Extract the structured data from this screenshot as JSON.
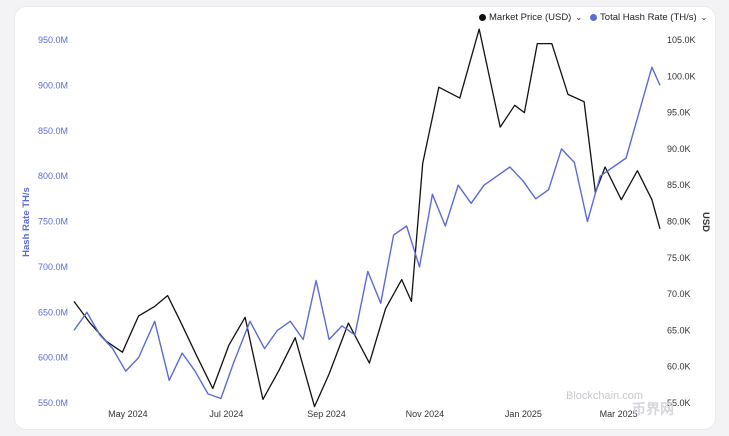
{
  "legend": {
    "items": [
      {
        "label": "Market Price (USD)",
        "color": "#111111",
        "icon": "chevron-down-icon"
      },
      {
        "label": "Total Hash Rate (TH/s)",
        "color": "#5b6bd6",
        "icon": "chevron-down-icon"
      }
    ]
  },
  "watermark": "Blockchain.com",
  "watermark2": "币界网",
  "chart_data": {
    "type": "line",
    "title": "",
    "xlabel": "",
    "ylabel_left": "Hash Rate TH/s",
    "ylabel_right": "USD",
    "x_ticks": [
      "May 2024",
      "Jul 2024",
      "Sep 2024",
      "Nov 2024",
      "Jan 2025",
      "Mar 2025"
    ],
    "x_range": [
      "2024-04-10",
      "2025-04-08"
    ],
    "y_left": {
      "ticks": [
        "950.0M",
        "900.0M",
        "850.0M",
        "800.0M",
        "750.0M",
        "700.0M",
        "650.0M",
        "600.0M",
        "550.0M"
      ],
      "min": 550,
      "max": 950,
      "unit": "M"
    },
    "y_right": {
      "ticks": [
        "105.0K",
        "100.0K",
        "95.0K",
        "90.0K",
        "85.0K",
        "80.0K",
        "75.0K",
        "70.0K",
        "65.0K",
        "60.0K",
        "55.0K"
      ],
      "min": 55000,
      "max": 105000
    },
    "grid": false,
    "legend_position": "top-right",
    "series": [
      {
        "name": "Market Price (USD)",
        "axis": "right",
        "color": "#111111",
        "points": [
          [
            "2024-04-10",
            69000
          ],
          [
            "2024-04-20",
            66000
          ],
          [
            "2024-04-30",
            63500
          ],
          [
            "2024-05-10",
            62000
          ],
          [
            "2024-05-20",
            67000
          ],
          [
            "2024-05-30",
            68300
          ],
          [
            "2024-06-07",
            69800
          ],
          [
            "2024-06-15",
            66200
          ],
          [
            "2024-06-25",
            61500
          ],
          [
            "2024-07-05",
            57000
          ],
          [
            "2024-07-15",
            63000
          ],
          [
            "2024-07-25",
            66800
          ],
          [
            "2024-08-05",
            55500
          ],
          [
            "2024-08-15",
            59500
          ],
          [
            "2024-08-25",
            64000
          ],
          [
            "2024-09-06",
            54500
          ],
          [
            "2024-09-15",
            59000
          ],
          [
            "2024-09-27",
            66000
          ],
          [
            "2024-10-10",
            60500
          ],
          [
            "2024-10-20",
            68000
          ],
          [
            "2024-10-30",
            72000
          ],
          [
            "2024-11-05",
            69000
          ],
          [
            "2024-11-12",
            88000
          ],
          [
            "2024-11-22",
            98500
          ],
          [
            "2024-12-05",
            97000
          ],
          [
            "2024-12-17",
            106500
          ],
          [
            "2024-12-30",
            93000
          ],
          [
            "2025-01-08",
            96000
          ],
          [
            "2025-01-14",
            95000
          ],
          [
            "2025-01-22",
            104500
          ],
          [
            "2025-01-31",
            104500
          ],
          [
            "2025-02-10",
            97500
          ],
          [
            "2025-02-20",
            96500
          ],
          [
            "2025-02-27",
            84000
          ],
          [
            "2025-03-05",
            87500
          ],
          [
            "2025-03-15",
            83000
          ],
          [
            "2025-03-25",
            87000
          ],
          [
            "2025-04-03",
            83000
          ],
          [
            "2025-04-08",
            79000
          ]
        ]
      },
      {
        "name": "Total Hash Rate (TH/s)",
        "axis": "left",
        "color": "#5b6bd6",
        "points": [
          [
            "2024-04-10",
            630
          ],
          [
            "2024-04-18",
            650
          ],
          [
            "2024-04-26",
            625
          ],
          [
            "2024-05-04",
            610
          ],
          [
            "2024-05-12",
            585
          ],
          [
            "2024-05-20",
            600
          ],
          [
            "2024-05-30",
            640
          ],
          [
            "2024-06-08",
            575
          ],
          [
            "2024-06-16",
            605
          ],
          [
            "2024-06-24",
            585
          ],
          [
            "2024-07-02",
            560
          ],
          [
            "2024-07-10",
            555
          ],
          [
            "2024-07-18",
            595
          ],
          [
            "2024-07-28",
            640
          ],
          [
            "2024-08-06",
            610
          ],
          [
            "2024-08-14",
            630
          ],
          [
            "2024-08-22",
            640
          ],
          [
            "2024-08-30",
            620
          ],
          [
            "2024-09-07",
            685
          ],
          [
            "2024-09-15",
            620
          ],
          [
            "2024-09-23",
            635
          ],
          [
            "2024-10-01",
            625
          ],
          [
            "2024-10-09",
            695
          ],
          [
            "2024-10-17",
            660
          ],
          [
            "2024-10-25",
            735
          ],
          [
            "2024-11-02",
            745
          ],
          [
            "2024-11-10",
            700
          ],
          [
            "2024-11-18",
            780
          ],
          [
            "2024-11-26",
            745
          ],
          [
            "2024-12-04",
            790
          ],
          [
            "2024-12-12",
            770
          ],
          [
            "2024-12-20",
            790
          ],
          [
            "2024-12-28",
            800
          ],
          [
            "2025-01-05",
            810
          ],
          [
            "2025-01-13",
            795
          ],
          [
            "2025-01-21",
            775
          ],
          [
            "2025-01-29",
            785
          ],
          [
            "2025-02-06",
            830
          ],
          [
            "2025-02-14",
            815
          ],
          [
            "2025-02-22",
            750
          ],
          [
            "2025-03-02",
            800
          ],
          [
            "2025-03-10",
            810
          ],
          [
            "2025-03-18",
            820
          ],
          [
            "2025-03-26",
            870
          ],
          [
            "2025-04-03",
            920
          ],
          [
            "2025-04-08",
            900
          ]
        ]
      }
    ]
  }
}
